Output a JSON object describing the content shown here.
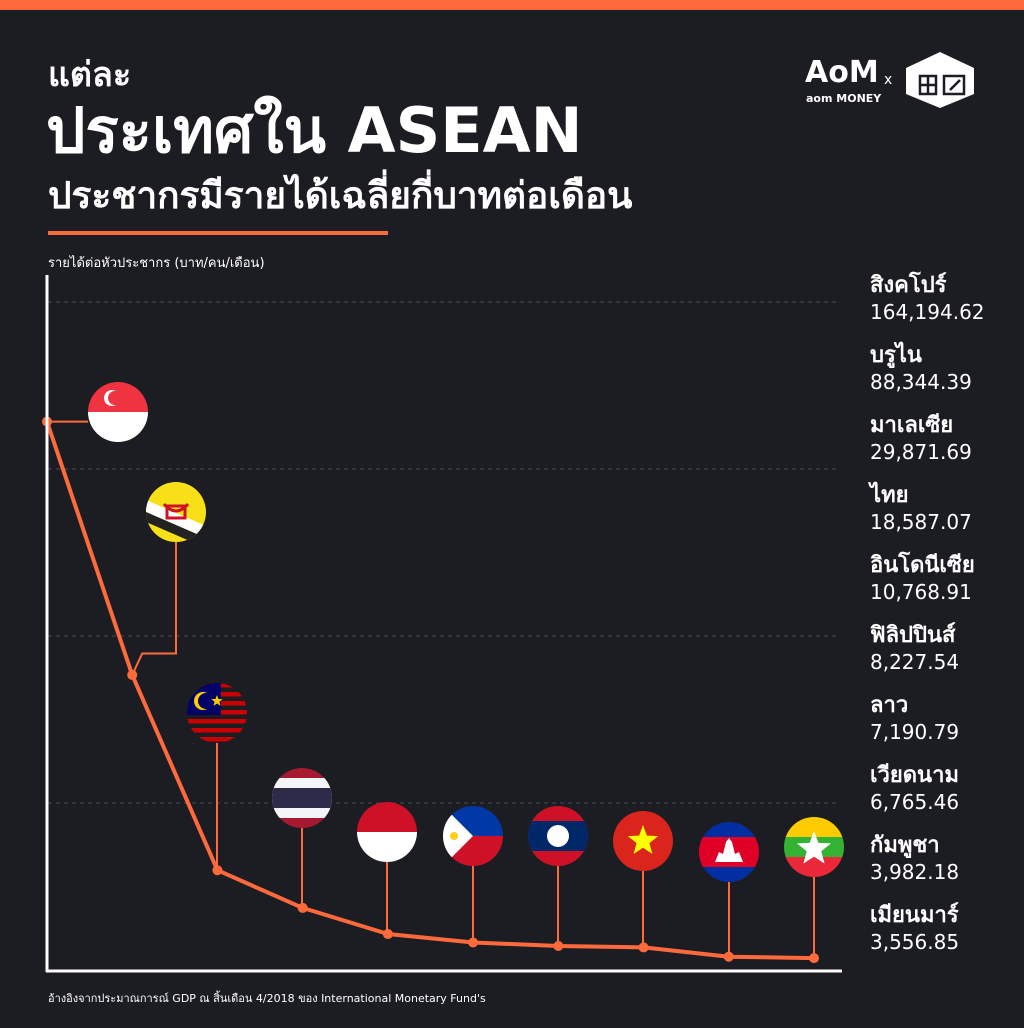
{
  "header": {
    "lines": [
      "แต่ละ",
      "ประเทศใน ASEAN",
      "ประชากรมีรายได้เฉลี่ยกี่บาทต่อเดือน"
    ]
  },
  "logo": {
    "mark": "AoM",
    "brand": "aom MONEY",
    "joiner": "x"
  },
  "chart_data": {
    "type": "line",
    "y_label": "รายได้ต่อหัวประชากร (บาท/คน/เดือน)",
    "categories": [
      "สิงคโปร์",
      "บรูไน",
      "มาเลเซีย",
      "ไทย",
      "อินโดนีเซีย",
      "ฟิลิปปินส์",
      "ลาว",
      "เวียดนาม",
      "กัมพูชา",
      "เมียนมาร์"
    ],
    "values": [
      164194.62,
      88344.39,
      29871.69,
      18587.07,
      10768.91,
      8227.54,
      7190.79,
      6765.46,
      3982.18,
      3556.85
    ],
    "value_labels": [
      "164,194.62",
      "88,344.39",
      "29,871.69",
      "18,587.07",
      "10,768.91",
      "8,227.54",
      "7,190.79",
      "6,765.46",
      "3,982.18",
      "3,556.85"
    ],
    "color": "#ff6a3d",
    "ylim": [
      0,
      200000
    ],
    "yticks": [
      50000,
      100000,
      150000,
      200000
    ],
    "grid": true
  },
  "footnote": "อ้างอิงจากประมาณการณ์ GDP ณ สิ้นเดือน 4/2018 ของ International Monetary Fund's"
}
